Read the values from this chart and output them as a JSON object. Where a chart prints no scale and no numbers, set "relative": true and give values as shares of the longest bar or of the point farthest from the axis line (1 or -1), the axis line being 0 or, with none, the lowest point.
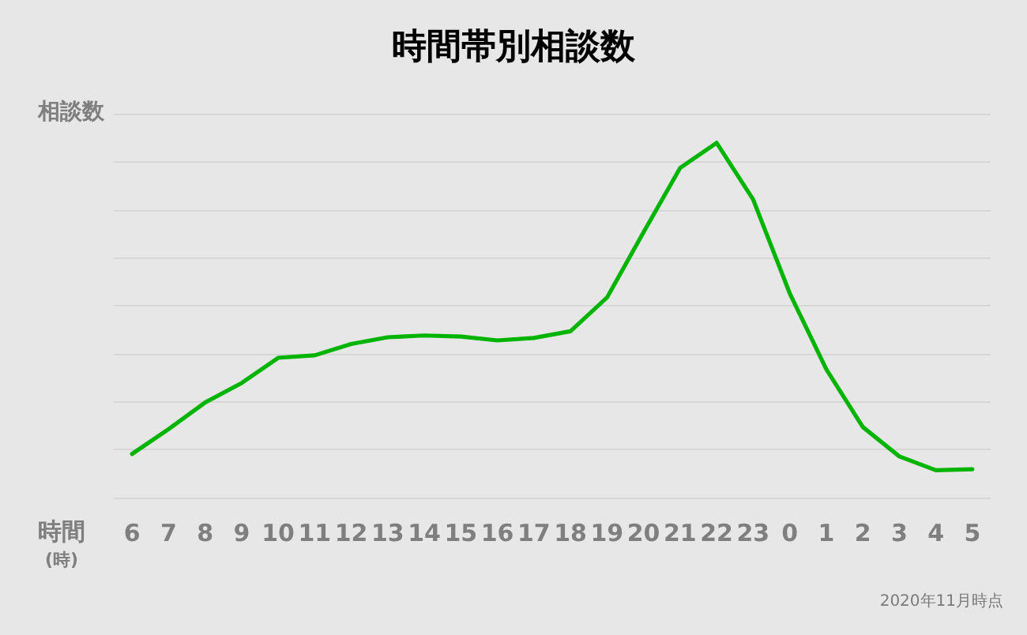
{
  "chart_data": {
    "type": "line",
    "title": "時間帯別相談数",
    "ylabel": "相談数",
    "xlabel": "時間\n(時)",
    "categories": [
      "6",
      "7",
      "8",
      "9",
      "10",
      "11",
      "12",
      "13",
      "14",
      "15",
      "16",
      "17",
      "18",
      "19",
      "20",
      "21",
      "22",
      "23",
      "0",
      "1",
      "2",
      "3",
      "4",
      "5"
    ],
    "values": [
      0.123,
      0.193,
      0.268,
      0.323,
      0.394,
      0.401,
      0.433,
      0.452,
      0.457,
      0.454,
      0.443,
      0.45,
      0.469,
      0.564,
      0.748,
      0.929,
      1,
      0.84,
      0.576,
      0.362,
      0.199,
      0.116,
      0.077,
      0.08
    ],
    "color": "#00b400",
    "relative": true,
    "grid": "y",
    "marker": "none",
    "annotations": [
      "2020年11月時点"
    ]
  }
}
